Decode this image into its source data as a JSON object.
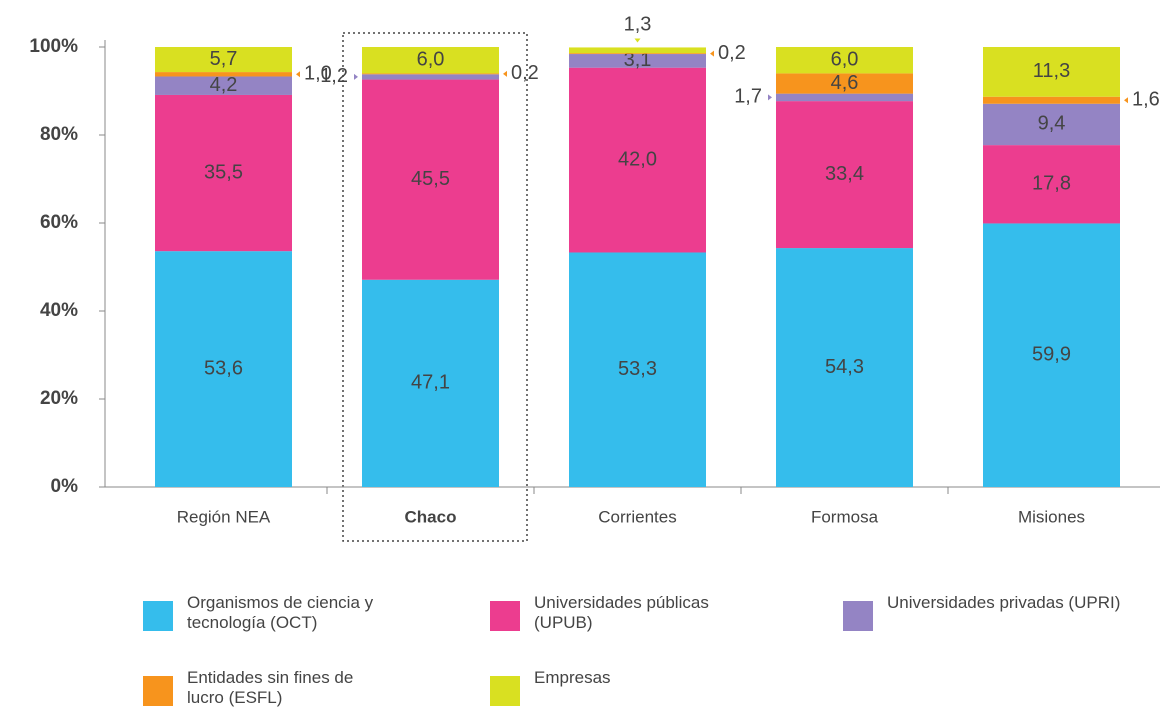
{
  "chart_data": {
    "type": "stacked_bar",
    "categories": [
      "Región NEA",
      "Chaco",
      "Corrientes",
      "Formosa",
      "Misiones"
    ],
    "series": [
      {
        "name": "Organismos de ciencia y tecnología (OCT)",
        "color": "#35bdec",
        "values": [
          53.6,
          47.1,
          53.3,
          54.3,
          59.9
        ],
        "value_labels": [
          "53,6",
          "47,1",
          "53,3",
          "54,3",
          "59,9"
        ]
      },
      {
        "name": "Universidades públicas (UPUB)",
        "color": "#ec3d8f",
        "values": [
          35.5,
          45.5,
          42.0,
          33.4,
          17.8
        ],
        "value_labels": [
          "35,5",
          "45,5",
          "42,0",
          "33,4",
          "17,8"
        ]
      },
      {
        "name": "Universidades privadas (UPRI)",
        "color": "#9484c4",
        "values": [
          4.2,
          1.2,
          3.1,
          1.7,
          9.4
        ],
        "value_labels": [
          "4,2",
          "1,2",
          "3,1",
          "1,7",
          "9,4"
        ]
      },
      {
        "name": "Entidades sin fines de lucro (ESFL)",
        "color": "#f7941d",
        "values": [
          1.0,
          0.2,
          0.2,
          4.6,
          1.6
        ],
        "value_labels": [
          "1,0",
          "0,2",
          "0,2",
          "4,6",
          "1,6"
        ]
      },
      {
        "name": "Empresas",
        "color": "#d9e021",
        "values": [
          5.7,
          6.0,
          1.3,
          6.0,
          11.3
        ],
        "value_labels": [
          "5,7",
          "6,0",
          "1,3",
          "6,0",
          "11,3"
        ]
      }
    ],
    "ylim": [
      0,
      100
    ],
    "yticks": [
      {
        "value": 0,
        "label": "0%"
      },
      {
        "value": 20,
        "label": "20%"
      },
      {
        "value": 40,
        "label": "40%"
      },
      {
        "value": 60,
        "label": "60%"
      },
      {
        "value": 80,
        "label": "80%"
      },
      {
        "value": 100,
        "label": "100%"
      }
    ],
    "legend": "bottom"
  }
}
